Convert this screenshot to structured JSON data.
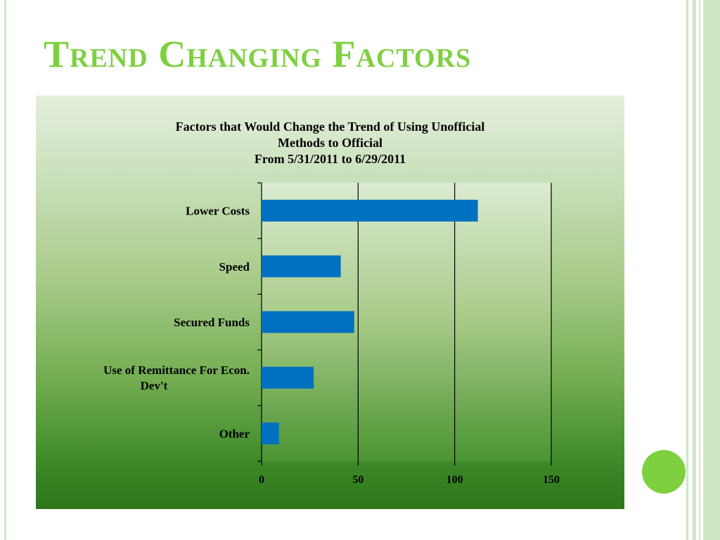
{
  "slide": {
    "title": "Trend Changing Factors"
  },
  "colors": {
    "title_green": "#7ed041",
    "bar_blue": "#0070c0",
    "accent_dot": "#7ed041"
  },
  "chart_data": {
    "type": "bar",
    "orientation": "horizontal",
    "title_lines": [
      "Factors that Would Change the Trend of Using Unofficial",
      "Methods  to Official",
      "From 5/31/2011 to 6/29/2011"
    ],
    "categories": [
      "Lower Costs",
      "Speed",
      "Secured Funds",
      "Use of Remittance For Econ. Dev't",
      "Other"
    ],
    "category_label_lines": [
      [
        "Lower Costs"
      ],
      [
        "Speed"
      ],
      [
        "Secured Funds"
      ],
      [
        "Use of Remittance For Econ.",
        "Dev't"
      ],
      [
        "Other"
      ]
    ],
    "values": [
      112,
      41,
      48,
      27,
      9
    ],
    "xlim": [
      0,
      150
    ],
    "x_ticks": [
      "0",
      "50",
      "100",
      "150"
    ],
    "xlabel": "",
    "ylabel": "",
    "grid": true,
    "legend": "none"
  }
}
